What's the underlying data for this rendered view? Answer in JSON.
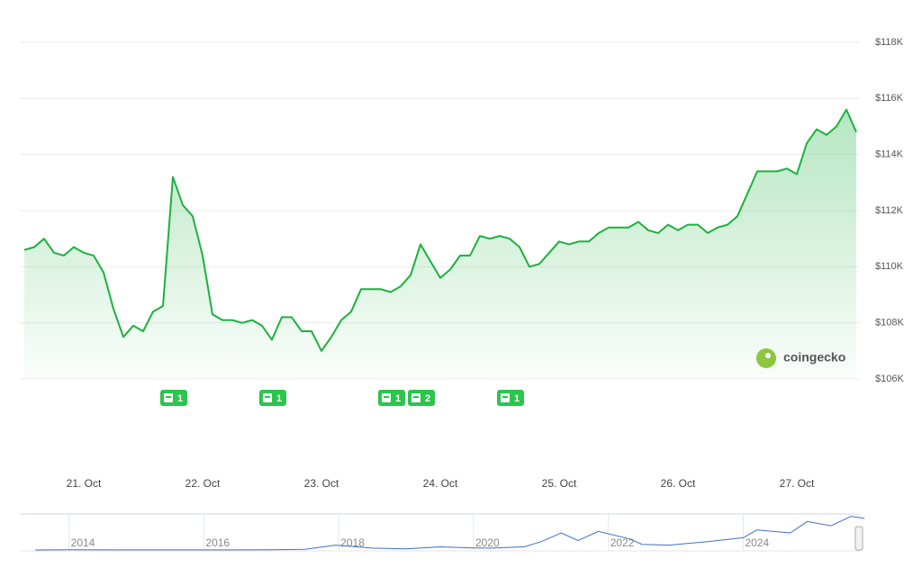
{
  "chart_data": [
    {
      "type": "line",
      "color": "#1cb13e",
      "categories": [
        null,
        null,
        null,
        null,
        null,
        null,
        "21. Oct",
        null,
        null,
        null,
        null,
        null,
        null,
        null,
        null,
        null,
        null,
        null,
        "22. Oct",
        null,
        null,
        null,
        null,
        null,
        null,
        null,
        null,
        null,
        null,
        null,
        "23. Oct",
        null,
        null,
        null,
        null,
        null,
        null,
        null,
        null,
        null,
        null,
        null,
        "24. Oct",
        null,
        null,
        null,
        null,
        null,
        null,
        null,
        null,
        null,
        null,
        null,
        "25. Oct",
        null,
        null,
        null,
        null,
        null,
        null,
        null,
        null,
        null,
        null,
        null,
        "26. Oct",
        null,
        null,
        null,
        null,
        null,
        null,
        null,
        null,
        null,
        null,
        null,
        "27. Oct",
        null,
        null,
        null,
        null,
        null,
        null
      ],
      "values": [
        110600,
        110700,
        111000,
        110500,
        110400,
        110700,
        110500,
        110400,
        109800,
        108500,
        107500,
        107900,
        107700,
        108400,
        108600,
        113200,
        112200,
        111800,
        110400,
        108300,
        108100,
        108100,
        108000,
        108100,
        107900,
        107400,
        108200,
        108200,
        107700,
        107700,
        107000,
        107500,
        108100,
        108400,
        109200,
        109200,
        109200,
        109100,
        109300,
        109700,
        110800,
        110200,
        109600,
        109900,
        110400,
        110400,
        111100,
        111000,
        111100,
        111000,
        110700,
        110000,
        110100,
        110500,
        110900,
        110800,
        110900,
        110900,
        111200,
        111400,
        111400,
        111400,
        111600,
        111300,
        111200,
        111500,
        111300,
        111500,
        111500,
        111200,
        111400,
        111500,
        111800,
        112600,
        113400,
        113400,
        113400,
        113500,
        113300,
        114400,
        114900,
        114700,
        115000,
        115600,
        114800
      ],
      "ylim": [
        106000,
        118000
      ],
      "yticks": [
        {
          "value": 106000,
          "label": "$106K"
        },
        {
          "value": 108000,
          "label": "$108K"
        },
        {
          "value": 110000,
          "label": "$110K"
        },
        {
          "value": 112000,
          "label": "$112K"
        },
        {
          "value": 114000,
          "label": "$114K"
        },
        {
          "value": 116000,
          "label": "$116K"
        },
        {
          "value": 118000,
          "label": "$118K"
        }
      ],
      "grid": true,
      "news": [
        {
          "index": 15,
          "count": 1
        },
        {
          "index": 25,
          "count": 1
        },
        {
          "index": 37,
          "count": 1
        },
        {
          "index": 40,
          "count": 2
        },
        {
          "index": 49,
          "count": 1
        }
      ],
      "watermark": "coingecko"
    },
    {
      "type": "line",
      "color": "#3f6fc4",
      "x": [
        2013.5,
        2014,
        2015,
        2016,
        2017,
        2017.5,
        2017.95,
        2018.5,
        2019,
        2019.5,
        2020,
        2020.25,
        2020.75,
        2021,
        2021.3,
        2021.55,
        2021.85,
        2022.3,
        2022.5,
        2022.9,
        2023.5,
        2024,
        2024.2,
        2024.7,
        2024.95,
        2025.3,
        2025.6,
        2025.8
      ],
      "values": [
        100,
        800,
        300,
        430,
        1000,
        2500,
        17000,
        6500,
        3700,
        11000,
        7200,
        6500,
        11000,
        29000,
        60000,
        33000,
        65000,
        40000,
        20000,
        17000,
        30000,
        43000,
        70000,
        60000,
        100000,
        85000,
        118000,
        111000
      ],
      "xlim": [
        2013.27,
        2025.73
      ],
      "ylim": [
        0,
        120000
      ],
      "xticks": [
        2014,
        2016,
        2018,
        2020,
        2022,
        2024
      ]
    }
  ]
}
